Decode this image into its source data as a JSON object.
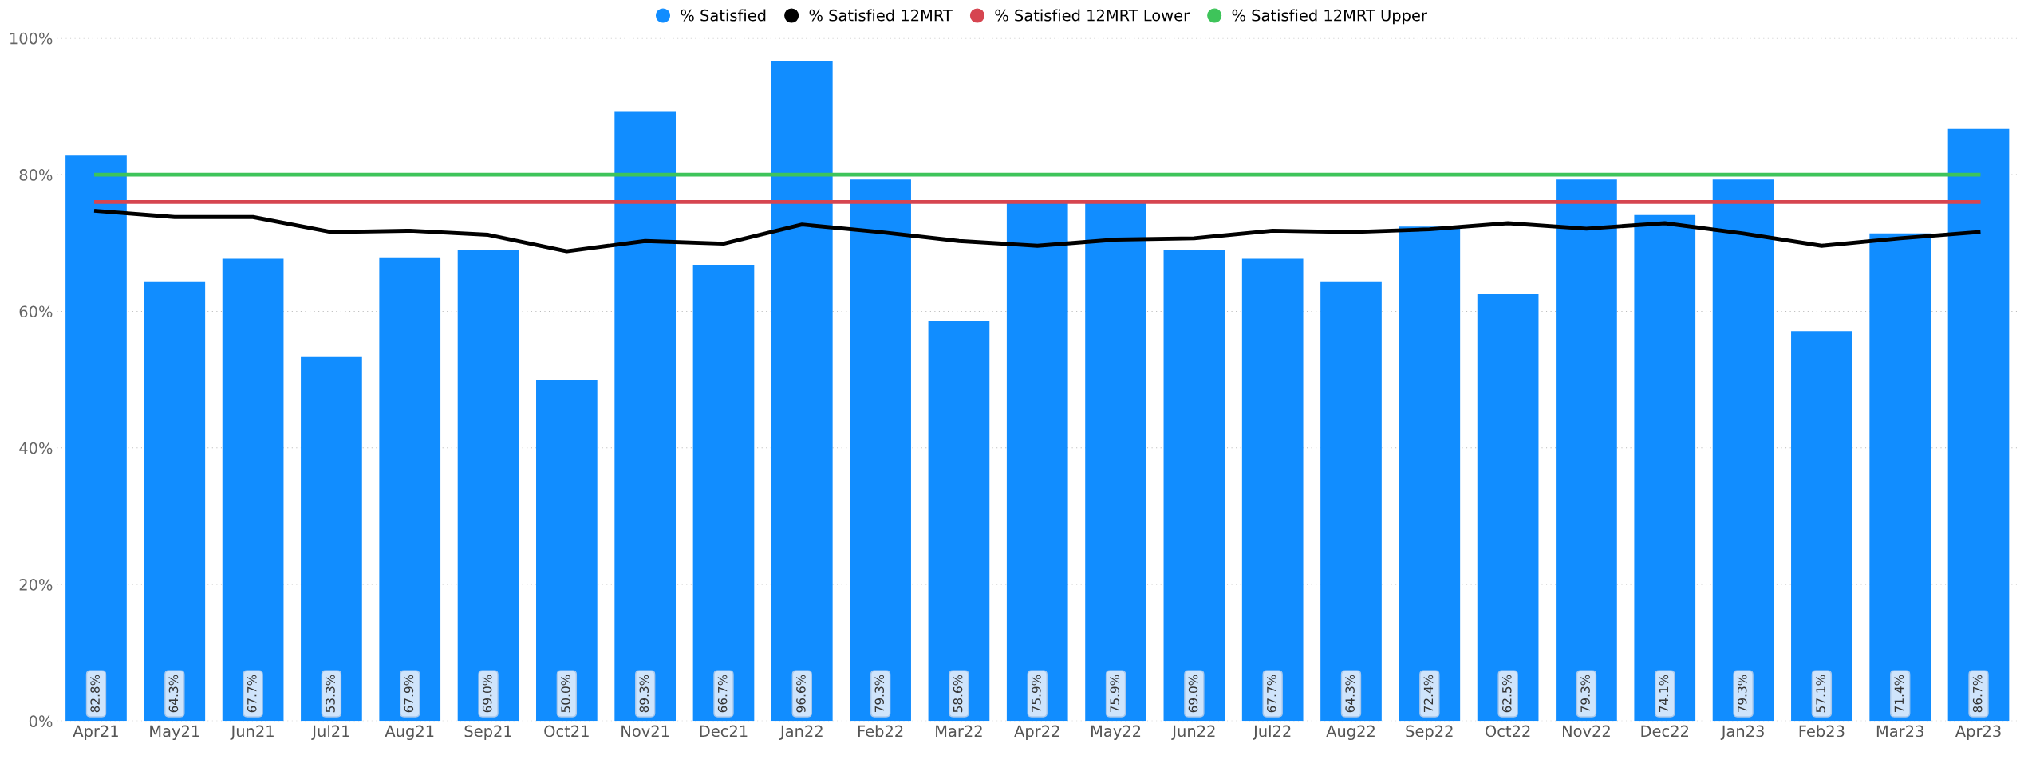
{
  "chart_data": {
    "type": "bar",
    "categories": [
      "Apr21",
      "May21",
      "Jun21",
      "Jul21",
      "Aug21",
      "Sep21",
      "Oct21",
      "Nov21",
      "Dec21",
      "Jan22",
      "Feb22",
      "Mar22",
      "Apr22",
      "May22",
      "Jun22",
      "Jul22",
      "Aug22",
      "Sep22",
      "Oct22",
      "Nov22",
      "Dec22",
      "Jan23",
      "Feb23",
      "Mar23",
      "Apr23"
    ],
    "series": [
      {
        "name": "% Satisfied",
        "color": "#118dff",
        "values": [
          82.8,
          64.3,
          67.7,
          53.3,
          67.9,
          69.0,
          50.0,
          89.3,
          66.7,
          96.6,
          79.3,
          58.6,
          75.9,
          75.9,
          69.0,
          67.7,
          64.3,
          72.4,
          62.5,
          79.3,
          74.1,
          79.3,
          57.1,
          71.4,
          86.7
        ],
        "value_labels": [
          "82.8%",
          "64.3%",
          "67.7%",
          "53.3%",
          "67.9%",
          "69.0%",
          "50.0%",
          "89.3%",
          "66.7%",
          "96.6%",
          "79.3%",
          "58.6%",
          "75.9%",
          "75.9%",
          "69.0%",
          "67.7%",
          "64.3%",
          "72.4%",
          "62.5%",
          "79.3%",
          "74.1%",
          "79.3%",
          "57.1%",
          "71.4%",
          "86.7%"
        ]
      },
      {
        "name": "% Satisfied 12MRT",
        "type": "line",
        "color": "#000000",
        "values": [
          74.7,
          73.8,
          73.8,
          71.6,
          71.8,
          71.2,
          68.8,
          70.3,
          69.9,
          72.7,
          71.6,
          70.3,
          69.6,
          70.5,
          70.7,
          71.8,
          71.6,
          72.0,
          72.9,
          72.1,
          72.9,
          71.4,
          69.6,
          70.7,
          71.6
        ]
      },
      {
        "name": "% Satisfied 12MRT Lower",
        "type": "line",
        "color": "#d64550",
        "values": [
          76,
          76,
          76,
          76,
          76,
          76,
          76,
          76,
          76,
          76,
          76,
          76,
          76,
          76,
          76,
          76,
          76,
          76,
          76,
          76,
          76,
          76,
          76,
          76,
          76
        ]
      },
      {
        "name": "% Satisfied 12MRT Upper",
        "type": "line",
        "color": "#3ec45a",
        "values": [
          80,
          80,
          80,
          80,
          80,
          80,
          80,
          80,
          80,
          80,
          80,
          80,
          80,
          80,
          80,
          80,
          80,
          80,
          80,
          80,
          80,
          80,
          80,
          80,
          80
        ]
      }
    ],
    "ylim": [
      0,
      100
    ],
    "yticks": [
      {
        "value": 0,
        "label": "0%"
      },
      {
        "value": 20,
        "label": "20%"
      },
      {
        "value": 40,
        "label": "40%"
      },
      {
        "value": 60,
        "label": "60%"
      },
      {
        "value": 80,
        "label": "80%"
      },
      {
        "value": 100,
        "label": "100%"
      }
    ],
    "grid": "y",
    "legend": "top",
    "marker": "none",
    "line_style": "solid"
  }
}
